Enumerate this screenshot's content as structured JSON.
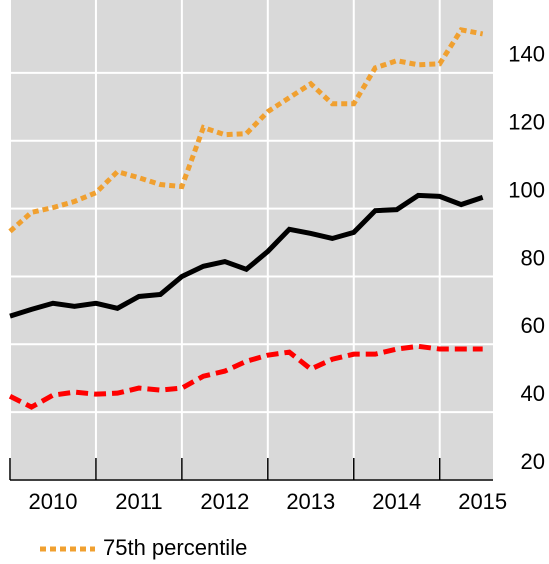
{
  "chart_data": {
    "type": "line",
    "x": [
      2010,
      2010.25,
      2010.5,
      2010.75,
      2011,
      2011.25,
      2011.5,
      2011.75,
      2012,
      2012.25,
      2012.5,
      2012.75,
      2013,
      2013.25,
      2013.5,
      2013.75,
      2014,
      2014.25,
      2014.5,
      2014.75,
      2015,
      2015.25,
      2015.5
    ],
    "series": [
      {
        "color": "#000000",
        "style": "solid",
        "values": [
          68.3,
          70.3,
          72.1,
          71.2,
          72.1,
          70.6,
          74.1,
          74.7,
          80.0,
          83.0,
          84.4,
          82.1,
          87.4,
          93.9,
          92.7,
          91.2,
          93.0,
          99.4,
          99.7,
          103.9,
          103.6,
          101.2,
          103.3
        ]
      },
      {
        "name": "75th percentile",
        "color": "#f0a030",
        "style": "dotted",
        "values": [
          93.3,
          98.9,
          100.3,
          102.1,
          104.7,
          110.9,
          109.1,
          107.1,
          106.5,
          123.9,
          121.8,
          122.1,
          128.6,
          132.7,
          136.8,
          130.9,
          130.9,
          141.5,
          143.6,
          142.4,
          142.7,
          152.7,
          151.5
        ]
      },
      {
        "color": "#ff0000",
        "style": "dashed",
        "values": [
          44.7,
          41.5,
          45.0,
          45.9,
          45.3,
          45.6,
          47.1,
          46.5,
          47.1,
          50.6,
          52.1,
          55.0,
          56.8,
          57.7,
          52.7,
          55.6,
          57.1,
          57.1,
          58.6,
          59.4,
          58.6,
          58.6,
          58.6
        ]
      }
    ],
    "xlim": [
      2010,
      2015.62
    ],
    "xticks": [
      {
        "value": 2010.5,
        "label": "2010"
      },
      {
        "value": 2011.5,
        "label": "2011"
      },
      {
        "value": 2012.5,
        "label": "2012"
      },
      {
        "value": 2013.5,
        "label": "2013"
      },
      {
        "value": 2014.5,
        "label": "2014"
      },
      {
        "value": 2015.5,
        "label": "2015"
      }
    ],
    "xgrid": [
      2010,
      2011,
      2012,
      2013,
      2014,
      2015
    ],
    "ylim": [
      20,
      161.5
    ],
    "yticks": [
      20,
      40,
      60,
      80,
      100,
      120,
      140
    ],
    "grid": true
  }
}
